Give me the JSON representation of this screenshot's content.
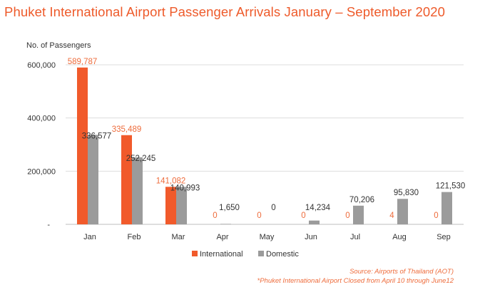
{
  "title": "Phuket International Airport Passenger Arrivals January – September 2020",
  "notes": {
    "source": "Source: Airports of Thailand (AOT)",
    "footnote": "*Phuket International Airport Closed from April 10 through June12"
  },
  "colors": {
    "international": "#f15a2b",
    "domestic": "#9b9b9b",
    "grid": "#dddddd",
    "title": "#ee5a2a"
  },
  "chart_data": {
    "type": "bar",
    "title": "Phuket International Airport Passenger Arrivals January – September 2020",
    "ylabel": "No. of Passengers",
    "xlabel": "",
    "ylim": [
      0,
      600000
    ],
    "yticks": [
      {
        "value": 0,
        "label": "-"
      },
      {
        "value": 200000,
        "label": "200,000"
      },
      {
        "value": 400000,
        "label": "400,000"
      },
      {
        "value": 600000,
        "label": "600,000"
      }
    ],
    "grid": true,
    "legend_position": "bottom",
    "categories": [
      "Jan",
      "Feb",
      "Mar",
      "Apr",
      "May",
      "Jun",
      "Jul",
      "Aug",
      "Sep"
    ],
    "series": [
      {
        "name": "International",
        "values": [
          589787,
          335489,
          141082,
          0,
          0,
          0,
          0,
          4,
          0
        ],
        "labels": [
          "589,787",
          "335,489",
          "141,082",
          "0",
          "0",
          "0",
          "0",
          "4",
          "0"
        ]
      },
      {
        "name": "Domestic",
        "values": [
          336577,
          252245,
          140993,
          1650,
          0,
          14234,
          70206,
          95830,
          121530
        ],
        "labels": [
          "336,577",
          "252,245",
          "140,993",
          "1,650",
          "0",
          "14,234",
          "70,206",
          "95,830",
          "121,530"
        ]
      }
    ]
  }
}
